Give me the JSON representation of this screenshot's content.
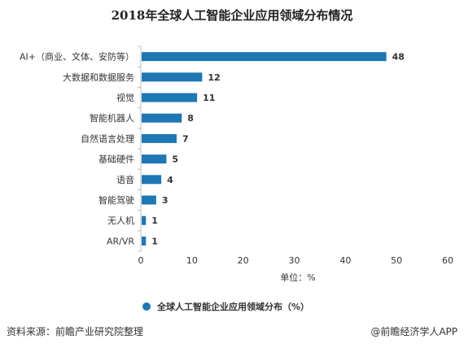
{
  "chart_data": {
    "type": "bar",
    "orientation": "horizontal",
    "title": "2018年全球人工智能企业应用领域分布情况",
    "categories": [
      "AI+（商业、文体、安防等）",
      "大数据和数据服务",
      "视觉",
      "智能机器人",
      "自然语言处理",
      "基础硬件",
      "语音",
      "智能驾驶",
      "无人机",
      "AR/VR"
    ],
    "series": [
      {
        "name": "全球人工智能企业应用领域分布（%）",
        "values": [
          48,
          12,
          11,
          8,
          7,
          5,
          4,
          3,
          1,
          1
        ]
      }
    ],
    "xlabel": "单位：%",
    "ylabel": "",
    "xlim": [
      0,
      60
    ],
    "xticks": [
      0,
      10,
      20,
      30,
      40,
      50,
      60
    ],
    "grid": false,
    "legend_position": "bottom",
    "bar_color": "#1f77b4"
  },
  "footer": {
    "source": "资料来源：前瞻产业研究院整理",
    "credit": "@前瞻经济学人APP"
  }
}
